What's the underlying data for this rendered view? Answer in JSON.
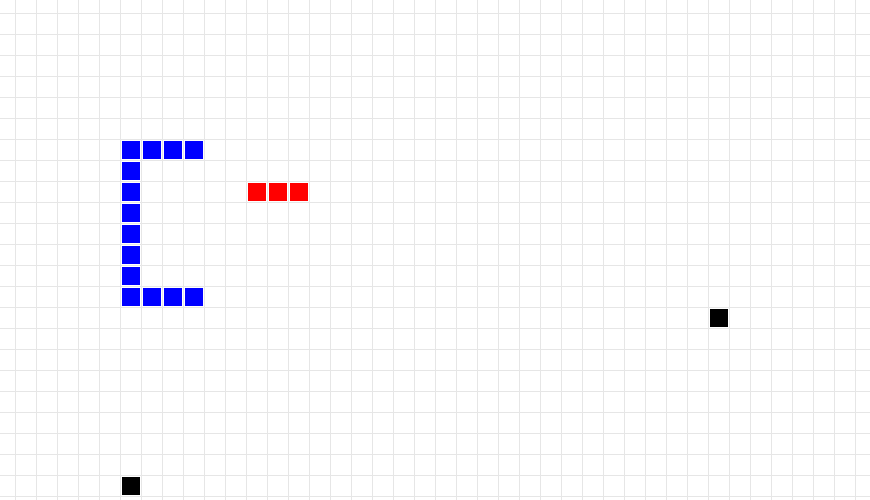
{
  "board": {
    "background": "#ffffff",
    "grid_line_color": "#e6e6e6"
  },
  "colors": {
    "player_snake": "#0000ff",
    "enemy_snake": "#ff0000",
    "food": "#000000"
  },
  "snakes": [
    {
      "id": "blue-snake",
      "color": "#0000ff",
      "segments": [
        [
          9,
          7
        ],
        [
          8,
          7
        ],
        [
          7,
          7
        ],
        [
          6,
          7
        ],
        [
          6,
          8
        ],
        [
          6,
          9
        ],
        [
          6,
          10
        ],
        [
          6,
          11
        ],
        [
          6,
          12
        ],
        [
          6,
          13
        ],
        [
          6,
          14
        ],
        [
          7,
          14
        ],
        [
          8,
          14
        ],
        [
          9,
          14
        ]
      ]
    },
    {
      "id": "red-snake",
      "color": "#ff0000",
      "segments": [
        [
          12,
          9
        ],
        [
          13,
          9
        ],
        [
          14,
          9
        ]
      ]
    }
  ],
  "food": [
    [
      34,
      15
    ],
    [
      6,
      23
    ]
  ]
}
